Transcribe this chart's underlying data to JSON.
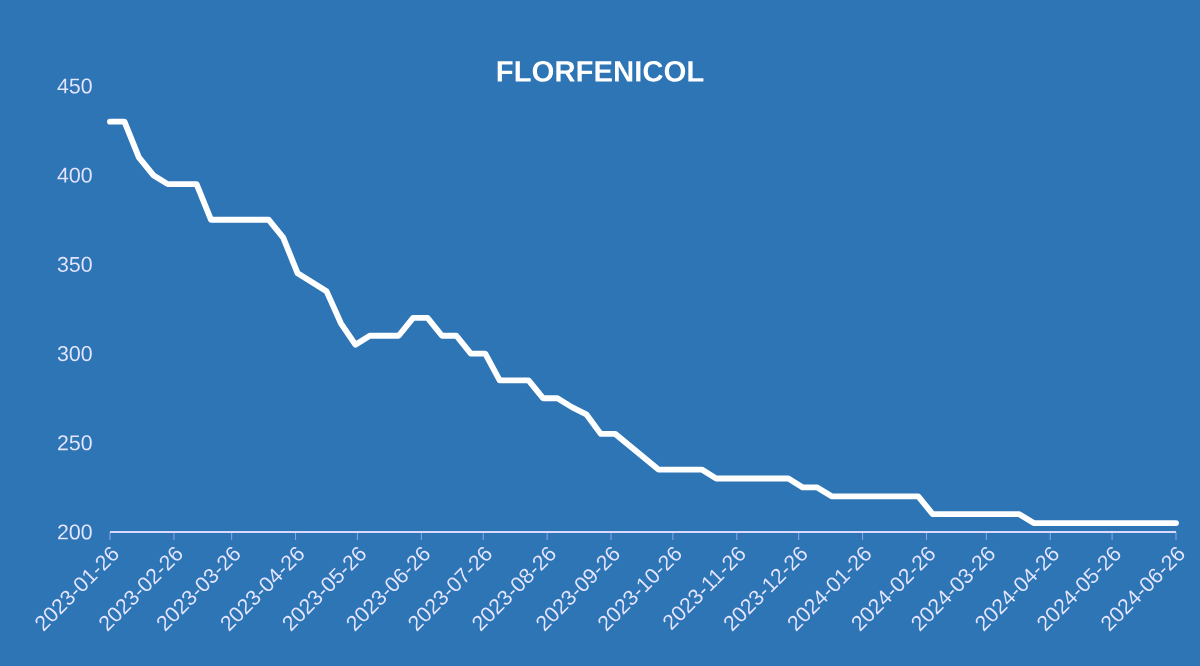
{
  "chart_data": {
    "type": "line",
    "title": "FLORFENICOL",
    "x": [
      "2023-01-26",
      "2023-02-02",
      "2023-02-09",
      "2023-02-16",
      "2023-02-23",
      "2023-03-09",
      "2023-03-16",
      "2023-04-13",
      "2023-04-20",
      "2023-04-27",
      "2023-05-11",
      "2023-05-18",
      "2023-05-25",
      "2023-06-01",
      "2023-06-15",
      "2023-06-22",
      "2023-06-29",
      "2023-07-06",
      "2023-07-13",
      "2023-07-20",
      "2023-07-27",
      "2023-08-03",
      "2023-08-17",
      "2023-08-24",
      "2023-08-31",
      "2023-09-07",
      "2023-09-14",
      "2023-09-21",
      "2023-09-28",
      "2023-10-19",
      "2023-11-09",
      "2023-11-16",
      "2023-12-21",
      "2023-12-28",
      "2024-01-04",
      "2024-01-11",
      "2024-02-22",
      "2024-02-29",
      "2024-04-11",
      "2024-04-18",
      "2024-06-26"
    ],
    "series": [
      {
        "color": "#ffffff",
        "values": [
          430,
          430,
          410,
          400,
          395,
          395,
          375,
          375,
          365,
          345,
          335,
          317,
          305,
          310,
          310,
          320,
          320,
          310,
          310,
          300,
          300,
          285,
          285,
          275,
          275,
          270,
          266,
          255,
          255,
          235,
          235,
          230,
          230,
          225,
          225,
          220,
          220,
          210,
          210,
          205,
          205
        ]
      }
    ],
    "xlim": [
      "2023-01-26",
      "2024-06-26"
    ],
    "xticks": [
      "2023-01-26",
      "2023-02-26",
      "2023-03-26",
      "2023-04-26",
      "2023-05-26",
      "2023-06-26",
      "2023-07-26",
      "2023-08-26",
      "2023-09-26",
      "2023-10-26",
      "2023-11-26",
      "2023-12-26",
      "2024-01-26",
      "2024-02-26",
      "2024-03-26",
      "2024-04-26",
      "2024-05-26",
      "2024-06-26"
    ],
    "ylim": [
      200,
      450
    ],
    "yticks": [
      200,
      250,
      300,
      350,
      400,
      450
    ],
    "grid": false,
    "marker": "none",
    "line_style": "solid"
  }
}
